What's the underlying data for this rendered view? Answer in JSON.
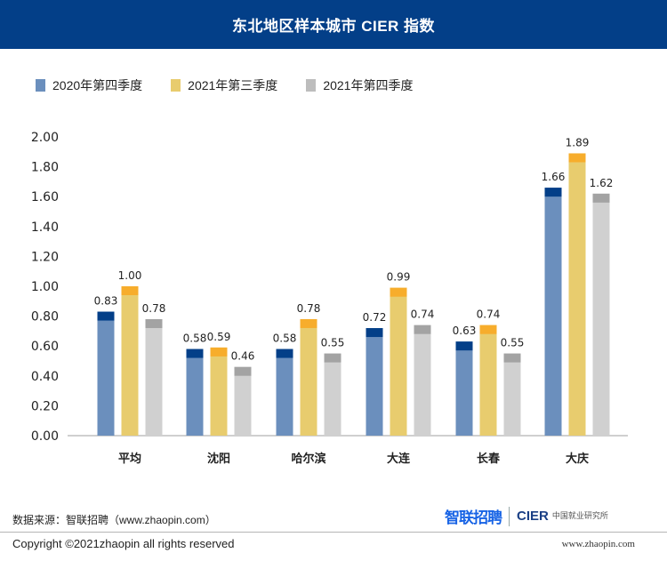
{
  "header": {
    "title": "东北地区样本城市 CIER 指数"
  },
  "colors": {
    "series_base": [
      "#6b8fbd",
      "#e8cc6e",
      "#d0d0d0"
    ],
    "series_cap": [
      "#033f88",
      "#f7ad2c",
      "#a3a3a3"
    ],
    "axis": "#bfbfbf",
    "text": "#222222"
  },
  "chart_data": {
    "type": "bar",
    "title": "东北地区样本城市 CIER 指数",
    "xlabel": "",
    "ylabel": "",
    "ylim": [
      0,
      2.0
    ],
    "yticks": [
      "0.00",
      "0.20",
      "0.40",
      "0.60",
      "0.80",
      "1.00",
      "1.20",
      "1.40",
      "1.60",
      "1.80",
      "2.00"
    ],
    "grid": false,
    "legend_position": "top-left",
    "categories": [
      "平均",
      "沈阳",
      "哈尔滨",
      "大连",
      "长春",
      "大庆"
    ],
    "series": [
      {
        "name": "2020年第四季度",
        "values": [
          0.83,
          0.58,
          0.58,
          0.72,
          0.63,
          1.66
        ],
        "labels": [
          "0.83",
          "0.58",
          "0.58",
          "0.72",
          "0.63",
          "1.66"
        ]
      },
      {
        "name": "2021年第三季度",
        "values": [
          1.0,
          0.59,
          0.78,
          0.99,
          0.74,
          1.89
        ],
        "labels": [
          "1.00",
          "0.59",
          "0.78",
          "0.99",
          "0.74",
          "1.89"
        ]
      },
      {
        "name": "2021年第四季度",
        "values": [
          0.78,
          0.46,
          0.55,
          0.74,
          0.55,
          1.62
        ],
        "labels": [
          "0.78",
          "0.46",
          "0.55",
          "0.74",
          "0.55",
          "1.62"
        ]
      }
    ]
  },
  "footer": {
    "source": "数据来源：智联招聘（www.zhaopin.com）",
    "copyright": "Copyright ©2021zhaopin all rights reserved",
    "url": "www.zhaopin.com",
    "logo_zhilian": "智联招聘",
    "logo_cier": "CIER",
    "logo_cier_sub": "中国就业研究所"
  }
}
